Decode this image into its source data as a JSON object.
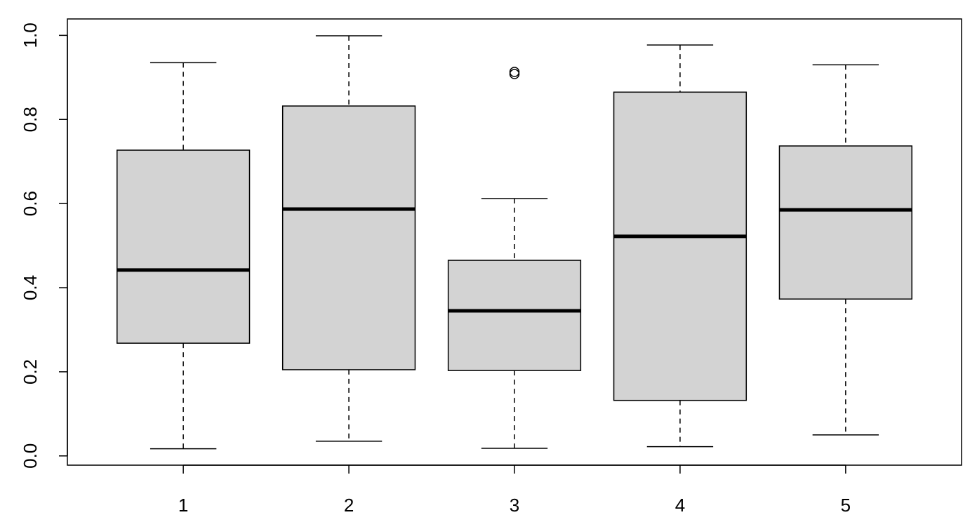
{
  "chart_data": {
    "type": "box",
    "color": "#d3d3d3",
    "x": [
      1,
      2,
      3,
      4,
      5
    ],
    "boxes": [
      {
        "min": 0.017,
        "q1": 0.268,
        "median": 0.442,
        "q3": 0.727,
        "max": 0.935,
        "outliers": []
      },
      {
        "min": 0.035,
        "q1": 0.205,
        "median": 0.587,
        "q3": 0.832,
        "max": 0.999,
        "outliers": []
      },
      {
        "min": 0.018,
        "q1": 0.203,
        "median": 0.345,
        "q3": 0.465,
        "max": 0.612,
        "outliers": [
          0.913,
          0.908
        ]
      },
      {
        "min": 0.022,
        "q1": 0.132,
        "median": 0.522,
        "q3": 0.865,
        "max": 0.977,
        "outliers": []
      },
      {
        "min": 0.05,
        "q1": 0.373,
        "median": 0.585,
        "q3": 0.737,
        "max": 0.93,
        "outliers": []
      }
    ],
    "xlim": [
      0.3,
      5.7
    ],
    "xticks": [
      1,
      2,
      3,
      4,
      5
    ],
    "ylim": [
      -0.022,
      1.039
    ],
    "yticks": [
      {
        "value": 0,
        "label": "0.0"
      },
      0.2,
      0.4,
      0.6,
      0.8,
      {
        "value": 1,
        "label": "1.0"
      }
    ]
  }
}
